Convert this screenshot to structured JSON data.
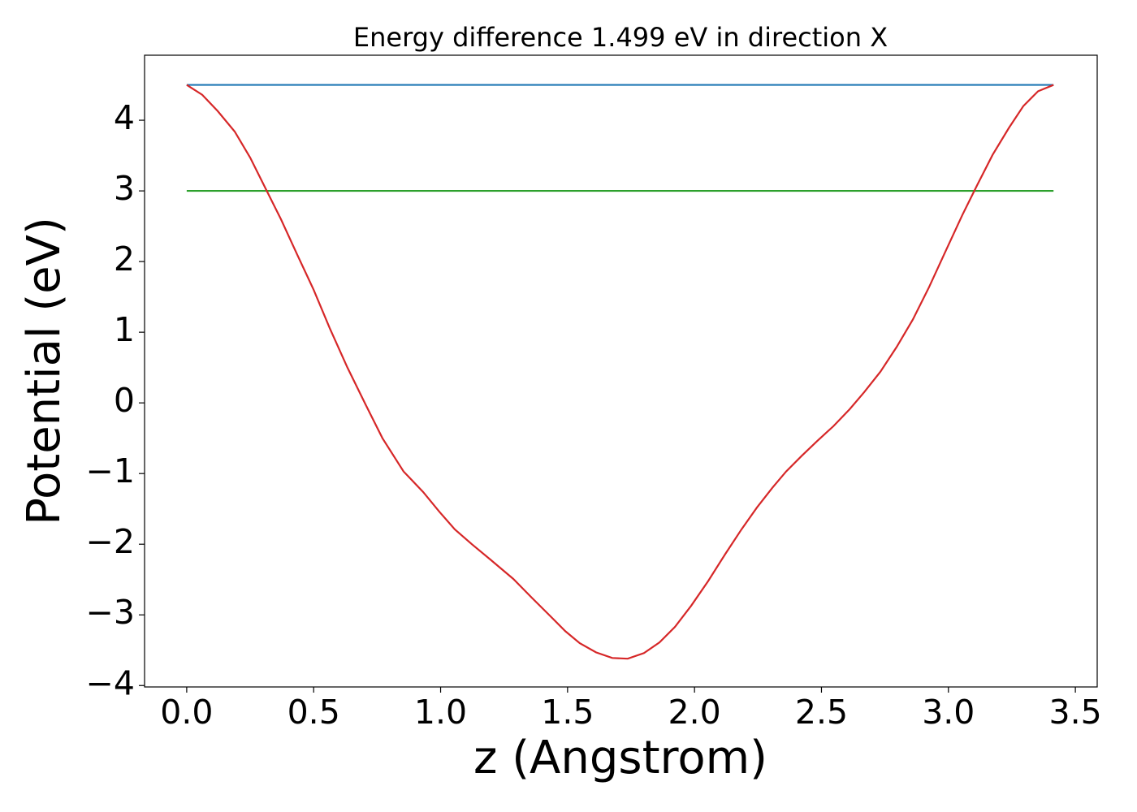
{
  "chart_data": {
    "type": "line",
    "title": "Energy difference 1.499 eV in direction X",
    "xlabel": "z (Angstrom)",
    "ylabel": "Potential (eV)",
    "xlim": [
      -0.166,
      3.586
    ],
    "ylim": [
      -4.02,
      4.92
    ],
    "xticks": [
      {
        "value": 0,
        "label": "0.0"
      },
      0.5,
      {
        "value": 1,
        "label": "1.0"
      },
      1.5,
      {
        "value": 2,
        "label": "2.0"
      },
      2.5,
      {
        "value": 3,
        "label": "3.0"
      },
      3.5
    ],
    "yticks": [
      {
        "value": -4,
        "label": "−4"
      },
      {
        "value": -3,
        "label": "−3"
      },
      {
        "value": -2,
        "label": "−2"
      },
      {
        "value": -1,
        "label": "−1"
      },
      0,
      1,
      2,
      3,
      4
    ],
    "series": [
      {
        "color": "#d62728",
        "x": [
          0.0,
          0.061,
          0.122,
          0.189,
          0.25,
          0.307,
          0.371,
          0.435,
          0.5,
          0.563,
          0.633,
          0.704,
          0.771,
          0.854,
          0.931,
          0.995,
          1.056,
          1.123,
          1.197,
          1.286,
          1.36,
          1.43,
          1.491,
          1.548,
          1.612,
          1.676,
          1.737,
          1.801,
          1.862,
          1.923,
          1.987,
          2.054,
          2.121,
          2.185,
          2.246,
          2.307,
          2.361,
          2.422,
          2.483,
          2.547,
          2.611,
          2.668,
          2.732,
          2.796,
          2.86,
          2.924,
          2.988,
          3.055,
          3.113,
          3.174,
          3.238,
          3.295,
          3.353,
          3.414
        ],
        "values": [
          4.5,
          4.36,
          4.13,
          3.84,
          3.47,
          3.06,
          2.6,
          2.1,
          1.6,
          1.06,
          0.5,
          -0.02,
          -0.5,
          -0.97,
          -1.26,
          -1.54,
          -1.79,
          -2.0,
          -2.22,
          -2.49,
          -2.76,
          -3.01,
          -3.23,
          -3.4,
          -3.53,
          -3.61,
          -3.62,
          -3.54,
          -3.39,
          -3.17,
          -2.87,
          -2.52,
          -2.14,
          -1.79,
          -1.48,
          -1.2,
          -0.97,
          -0.75,
          -0.54,
          -0.33,
          -0.09,
          0.15,
          0.44,
          0.79,
          1.18,
          1.64,
          2.14,
          2.66,
          3.08,
          3.51,
          3.89,
          4.2,
          4.41,
          4.5
        ]
      },
      {
        "color": "#1f77b4",
        "x": [
          0.0,
          3.414
        ],
        "values": [
          4.5,
          4.5
        ]
      },
      {
        "color": "#2ca02c",
        "x": [
          0.0,
          3.414
        ],
        "values": [
          3.0,
          3.0
        ]
      }
    ]
  }
}
